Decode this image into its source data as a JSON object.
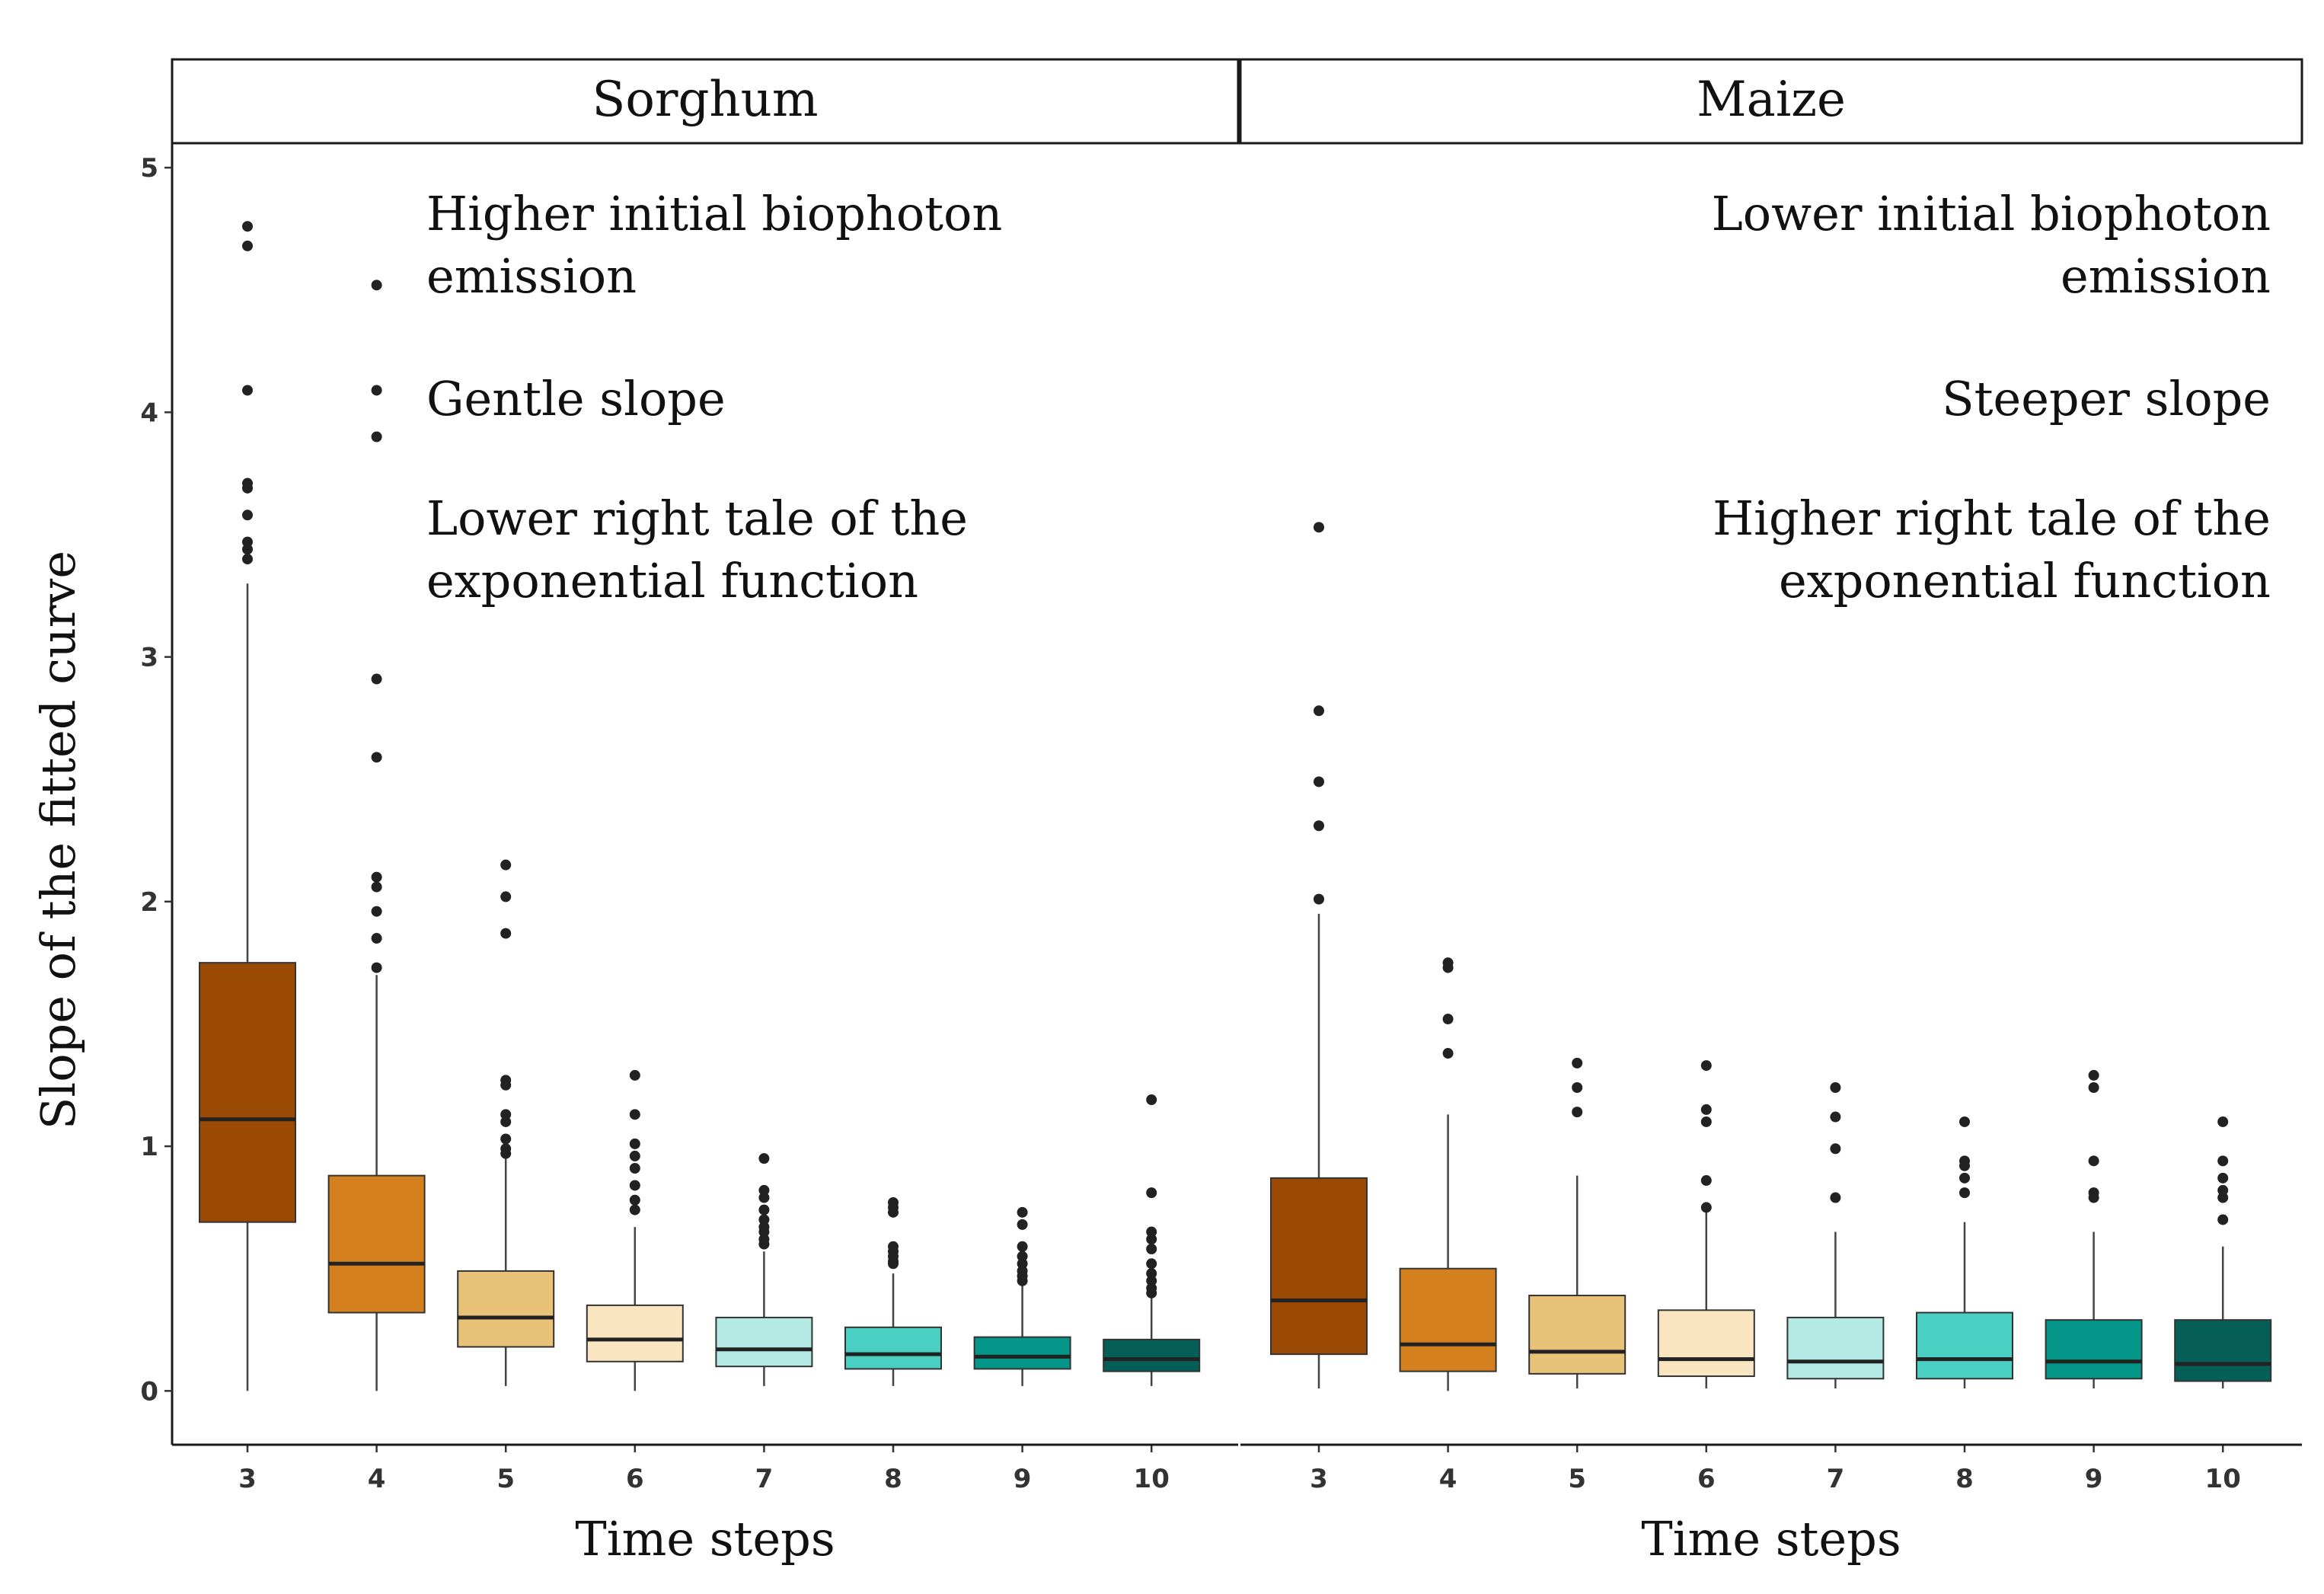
{
  "chart_data": {
    "type": "boxplot",
    "ylabel": "Slope of the fitted curve",
    "ylim": [
      -0.22,
      5.1
    ],
    "yticks": [
      "0",
      "1",
      "2",
      "3",
      "4",
      "5"
    ],
    "categories": [
      "3",
      "4",
      "5",
      "6",
      "7",
      "8",
      "9",
      "10"
    ],
    "colors": [
      "#9B4A05",
      "#D4801F",
      "#E9C27A",
      "#F9E6C0",
      "#B4EAE3",
      "#4ACFC3",
      "#05968A",
      "#055F56"
    ],
    "panels": [
      {
        "name": "Sorghum",
        "xlabel": "Time steps",
        "annotations": [
          {
            "lines": [
              "Higher initial  biophoton",
              "emission"
            ]
          },
          {
            "lines": [
              "Gentle slope"
            ]
          },
          {
            "lines": [
              "Lower right  tale of the",
              "exponential  function"
            ]
          }
        ],
        "boxes": [
          {
            "x": "3",
            "q1": 0.69,
            "median": 1.11,
            "q3": 1.75,
            "lower": 0.0,
            "upper": 3.3,
            "outliers": [
              4.76,
              4.68,
              4.09,
              3.71,
              3.69,
              3.58,
              3.47,
              3.44,
              3.4
            ]
          },
          {
            "x": "4",
            "q1": 0.32,
            "median": 0.52,
            "q3": 0.88,
            "lower": 0.0,
            "upper": 1.7,
            "outliers": [
              4.52,
              4.09,
              3.9,
              2.91,
              2.59,
              2.1,
              2.06,
              1.96,
              1.85,
              1.73
            ]
          },
          {
            "x": "5",
            "q1": 0.18,
            "median": 0.3,
            "q3": 0.49,
            "lower": 0.02,
            "upper": 0.95,
            "outliers": [
              2.15,
              2.02,
              1.87,
              1.27,
              1.25,
              1.13,
              1.1,
              1.03,
              0.99,
              0.97
            ]
          },
          {
            "x": "6",
            "q1": 0.12,
            "median": 0.21,
            "q3": 0.35,
            "lower": 0.0,
            "upper": 0.67,
            "outliers": [
              1.29,
              1.13,
              1.01,
              0.96,
              0.91,
              0.84,
              0.78,
              0.74
            ]
          },
          {
            "x": "7",
            "q1": 0.1,
            "median": 0.17,
            "q3": 0.3,
            "lower": 0.02,
            "upper": 0.57,
            "outliers": [
              0.95,
              0.82,
              0.79,
              0.74,
              0.7,
              0.67,
              0.65,
              0.62,
              0.6
            ]
          },
          {
            "x": "8",
            "q1": 0.09,
            "median": 0.15,
            "q3": 0.26,
            "lower": 0.02,
            "upper": 0.48,
            "outliers": [
              0.77,
              0.75,
              0.73,
              0.59,
              0.57,
              0.55,
              0.53,
              0.52
            ]
          },
          {
            "x": "9",
            "q1": 0.09,
            "median": 0.14,
            "q3": 0.22,
            "lower": 0.02,
            "upper": 0.43,
            "outliers": [
              0.73,
              0.68,
              0.59,
              0.55,
              0.52,
              0.49,
              0.47,
              0.45
            ]
          },
          {
            "x": "10",
            "q1": 0.08,
            "median": 0.13,
            "q3": 0.21,
            "lower": 0.02,
            "upper": 0.39,
            "outliers": [
              1.19,
              0.81,
              0.65,
              0.62,
              0.58,
              0.52,
              0.48,
              0.45,
              0.42,
              0.4
            ]
          }
        ]
      },
      {
        "name": "Maize",
        "xlabel": "Time steps",
        "annotations": [
          {
            "lines": [
              "Lower initial  biophoton",
              "emission"
            ]
          },
          {
            "lines": [
              "Steeper slope"
            ]
          },
          {
            "lines": [
              "Higher right  tale of the",
              "exponential  function"
            ]
          }
        ],
        "boxes": [
          {
            "x": "3",
            "q1": 0.15,
            "median": 0.37,
            "q3": 0.87,
            "lower": 0.01,
            "upper": 1.95,
            "outliers": [
              3.53,
              2.78,
              2.49,
              2.31,
              2.01
            ]
          },
          {
            "x": "4",
            "q1": 0.08,
            "median": 0.19,
            "q3": 0.5,
            "lower": 0.0,
            "upper": 1.13,
            "outliers": [
              1.75,
              1.73,
              1.52,
              1.38
            ]
          },
          {
            "x": "5",
            "q1": 0.07,
            "median": 0.16,
            "q3": 0.39,
            "lower": 0.01,
            "upper": 0.88,
            "outliers": [
              1.34,
              1.24,
              1.14
            ]
          },
          {
            "x": "6",
            "q1": 0.06,
            "median": 0.13,
            "q3": 0.33,
            "lower": 0.01,
            "upper": 0.75,
            "outliers": [
              1.33,
              1.15,
              1.1,
              0.86,
              0.75
            ]
          },
          {
            "x": "7",
            "q1": 0.05,
            "median": 0.12,
            "q3": 0.3,
            "lower": 0.01,
            "upper": 0.65,
            "outliers": [
              1.24,
              1.12,
              0.99,
              0.79
            ]
          },
          {
            "x": "8",
            "q1": 0.05,
            "median": 0.13,
            "q3": 0.32,
            "lower": 0.01,
            "upper": 0.69,
            "outliers": [
              1.1,
              0.94,
              0.92,
              0.87,
              0.81
            ]
          },
          {
            "x": "9",
            "q1": 0.05,
            "median": 0.12,
            "q3": 0.29,
            "lower": 0.01,
            "upper": 0.65,
            "outliers": [
              1.29,
              1.24,
              0.94,
              0.81,
              0.79
            ]
          },
          {
            "x": "10",
            "q1": 0.04,
            "median": 0.11,
            "q3": 0.29,
            "lower": 0.01,
            "upper": 0.59,
            "outliers": [
              1.1,
              0.94,
              0.87,
              0.82,
              0.79,
              0.7
            ]
          }
        ]
      }
    ]
  }
}
